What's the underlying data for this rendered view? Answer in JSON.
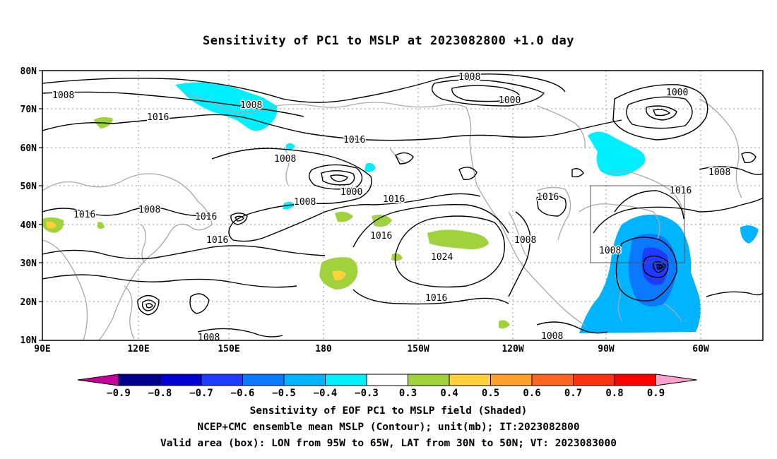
{
  "title": "Sensitivity of PC1 to MSLP at 2023082800 +1.0 day",
  "map": {
    "lat_ticks": [
      "80N",
      "70N",
      "60N",
      "50N",
      "40N",
      "30N",
      "20N",
      "10N"
    ],
    "lon_ticks": [
      "90E",
      "120E",
      "150E",
      "180",
      "150W",
      "120W",
      "90W",
      "60W"
    ],
    "extent": {
      "lon_west": "90E",
      "lon_east": "40W",
      "lat_south": "10N",
      "lat_north": "80N"
    },
    "grid": "dotted",
    "contour_labels": [
      {
        "id": "c1",
        "text": "1008"
      },
      {
        "id": "c2",
        "text": "1008"
      },
      {
        "id": "c3",
        "text": "1000"
      },
      {
        "id": "c4",
        "text": "1000"
      },
      {
        "id": "c5",
        "text": "1016"
      },
      {
        "id": "c6",
        "text": "1016"
      },
      {
        "id": "c7",
        "text": "1008"
      },
      {
        "id": "c8",
        "text": "1008"
      },
      {
        "id": "c9",
        "text": "1000"
      },
      {
        "id": "c10",
        "text": "1016"
      },
      {
        "id": "c11",
        "text": "1016"
      },
      {
        "id": "c12",
        "text": "1008"
      },
      {
        "id": "c13",
        "text": "1016"
      },
      {
        "id": "c14",
        "text": "1008"
      },
      {
        "id": "c15",
        "text": "1016"
      },
      {
        "id": "c16",
        "text": "1016"
      },
      {
        "id": "c17",
        "text": "1016"
      },
      {
        "id": "c18",
        "text": "1024"
      },
      {
        "id": "c19",
        "text": "1008"
      },
      {
        "id": "c20",
        "text": "1008"
      },
      {
        "id": "c21",
        "text": "1016"
      },
      {
        "id": "c22",
        "text": "1008"
      },
      {
        "id": "c23",
        "text": "1008"
      },
      {
        "id": "c24",
        "text": "1016"
      }
    ],
    "valid_box": {
      "lon_from": "95W",
      "lon_to": "65W",
      "lat_from": "30N",
      "lat_to": "50N"
    }
  },
  "colorbar": {
    "labels": [
      "-0.9",
      "-0.8",
      "-0.7",
      "-0.6",
      "-0.5",
      "-0.4",
      "-0.3",
      "0.3",
      "0.4",
      "0.5",
      "0.6",
      "0.7",
      "0.8",
      "0.9"
    ],
    "colors": [
      "#00008c",
      "#0000d2",
      "#1e3cff",
      "#0a78ff",
      "#00b4ff",
      "#00f0ff",
      "#ffffff",
      "#a0d23c",
      "#ffd23c",
      "#ffa028",
      "#ff6420",
      "#ff3010",
      "#ff0000"
    ],
    "end_low_color": "#c800a0",
    "end_high_color": "#ffa0d0"
  },
  "captions": {
    "line1": "Sensitivity of EOF PC1 to MSLP field (Shaded)",
    "line2": "NCEP+CMC ensemble mean MSLP (Contour); unit(mb); IT:2023082800",
    "line3": "Valid area (box): LON from 95W to 65W, LAT from 30N to 50N; VT: 2023083000"
  }
}
